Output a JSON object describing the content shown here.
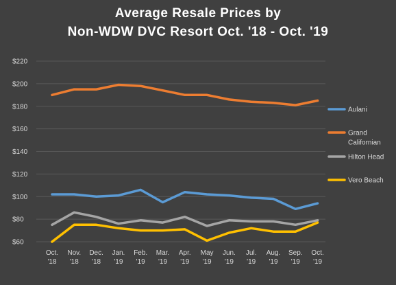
{
  "chart_data": {
    "type": "line",
    "title_lines": [
      "Average Resale Prices by",
      "Non-WDW  DVC Resort Oct. '18 - Oct. '19"
    ],
    "xlabel": "",
    "ylabel": "",
    "categories": [
      [
        "Oct.",
        "'18"
      ],
      [
        "Nov.",
        "'18"
      ],
      [
        "Dec.",
        "'18"
      ],
      [
        "Jan.",
        "'19"
      ],
      [
        "Feb.",
        "'19"
      ],
      [
        "Mar.",
        "'19"
      ],
      [
        "Apr.",
        "'19"
      ],
      [
        "May",
        "'19"
      ],
      [
        "Jun.",
        "'19"
      ],
      [
        "Jul.",
        "'19"
      ],
      [
        "Aug.",
        "'19"
      ],
      [
        "Sep.",
        "'19"
      ],
      [
        "Oct.",
        "'19"
      ]
    ],
    "ylim": [
      60,
      220
    ],
    "yticks": [
      60,
      80,
      100,
      120,
      140,
      160,
      180,
      200,
      220
    ],
    "ytick_labels": [
      "$60",
      "$80",
      "$100",
      "$120",
      "$140",
      "$160",
      "$180",
      "$200",
      "$220"
    ],
    "grid": true,
    "legend_position": "right",
    "series": [
      {
        "name": "Aulani",
        "legend_lines": [
          "Aulani"
        ],
        "color": "#5b9bd5",
        "values": [
          102,
          102,
          100,
          101,
          106,
          95,
          104,
          102,
          101,
          99,
          98,
          89,
          94
        ]
      },
      {
        "name": "Grand Californian",
        "legend_lines": [
          "Grand",
          "Californian"
        ],
        "color": "#ed7d31",
        "values": [
          190,
          195,
          195,
          199,
          198,
          194,
          190,
          190,
          186,
          184,
          183,
          181,
          185
        ]
      },
      {
        "name": "Hilton Head",
        "legend_lines": [
          "Hilton Head"
        ],
        "color": "#a5a5a5",
        "values": [
          75,
          86,
          82,
          76,
          79,
          77,
          82,
          74,
          79,
          78,
          78,
          75,
          79
        ]
      },
      {
        "name": "Vero Beach",
        "legend_lines": [
          "Vero Beach"
        ],
        "color": "#ffc000",
        "values": [
          60,
          75,
          75,
          72,
          70,
          70,
          71,
          61,
          68,
          72,
          69,
          69,
          77
        ]
      }
    ]
  }
}
